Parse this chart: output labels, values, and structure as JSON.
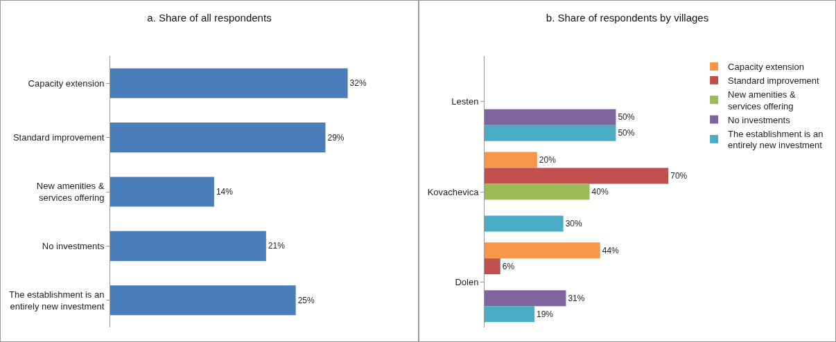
{
  "chart_data": [
    {
      "type": "bar",
      "title": "a. Share of all respondents",
      "orientation": "horizontal",
      "categories": [
        "Capacity extension",
        "Standard improvement",
        "New amenities & services offering",
        "No investments",
        "The establishment is an entirely new investment"
      ],
      "series": [
        {
          "color": "#4a7ebb",
          "values": [
            32,
            29,
            14,
            21,
            25
          ],
          "value_labels": [
            "32%",
            "29%",
            "14%",
            "21%",
            "25%"
          ]
        }
      ],
      "legend": false
    },
    {
      "type": "bar",
      "title": "b. Share of respondents by villages",
      "orientation": "horizontal",
      "categories": [
        "Lesten",
        "Kovachevica",
        "Dolen"
      ],
      "series": [
        {
          "name": "Capacity extension",
          "color": "#f79646",
          "values": [
            0,
            20,
            44
          ],
          "value_labels": [
            null,
            "20%",
            "44%"
          ]
        },
        {
          "name": "Standard improvement",
          "color": "#c0504d",
          "values": [
            0,
            70,
            6
          ],
          "value_labels": [
            null,
            "70%",
            "6%"
          ]
        },
        {
          "name": "New amenities & services offering",
          "color": "#9bbb59",
          "values": [
            0,
            40,
            0
          ],
          "value_labels": [
            null,
            "40%",
            null
          ]
        },
        {
          "name": "No investments",
          "color": "#8064a2",
          "values": [
            50,
            0,
            31
          ],
          "value_labels": [
            "50%",
            null,
            "31%"
          ]
        },
        {
          "name": "The establishment is an entirely new investment",
          "color": "#4bacc6",
          "values": [
            50,
            30,
            19
          ],
          "value_labels": [
            "50%",
            "30%",
            "19%"
          ]
        }
      ],
      "legend": "right"
    }
  ]
}
